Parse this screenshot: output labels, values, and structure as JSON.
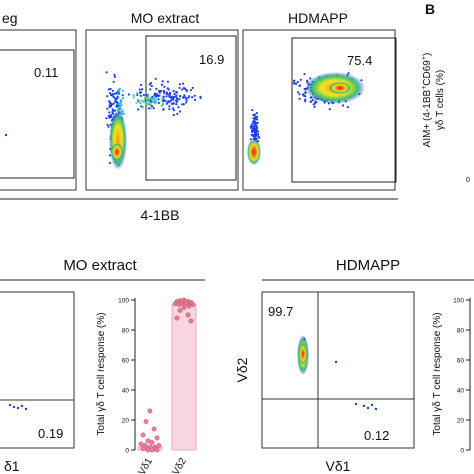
{
  "panel_b_letter": "B",
  "top": {
    "panels": [
      {
        "title": "eg",
        "value": "0.11"
      },
      {
        "title": "MO extract",
        "value": "16.9"
      },
      {
        "title": "HDMAPP",
        "value": "75.4"
      }
    ],
    "xlabel": "4-1BB",
    "right_ylabel_line1": "AIM+ (4-1BB",
    "right_ylabel_sup1": "+",
    "right_ylabel_mid": "CD69",
    "right_ylabel_sup2": "+",
    "right_ylabel_end": ")",
    "right_ylabel_line2": "γδ T cells (%)",
    "right_tick": "0"
  },
  "bottom": {
    "left_group": {
      "title": "MO extract",
      "flow_value": "0.19",
      "flow_xlabel": "δ1"
    },
    "right_group": {
      "title": "HDMAPP",
      "flow_value_top": "99.7",
      "flow_value_bottom": "0.12",
      "flow_xlabel": "Vδ1",
      "flow_ylabel": "Vδ2"
    },
    "dot_plot_ylabel": "Total γδ T cell response (%)"
  },
  "chart_data": [
    {
      "type": "scatter",
      "title": "MO extract",
      "ylabel": "Total γδ T cell response (%)",
      "categories": [
        "Vδ1",
        "Vδ2"
      ],
      "yticks": [
        "0",
        "20",
        "40",
        "60",
        "80",
        "100"
      ],
      "ylim": [
        0,
        100
      ],
      "bars": [
        2,
        97
      ],
      "points": [
        [
          1,
          26
        ],
        [
          1,
          19
        ],
        [
          1,
          14
        ],
        [
          1,
          10
        ],
        [
          1,
          8
        ],
        [
          1,
          6
        ],
        [
          1,
          5
        ],
        [
          1,
          4
        ],
        [
          1,
          3
        ],
        [
          1,
          3
        ],
        [
          1,
          2
        ],
        [
          1,
          2
        ],
        [
          1,
          1
        ],
        [
          1,
          1
        ],
        [
          1,
          1
        ],
        [
          1,
          0
        ],
        [
          1,
          0
        ],
        [
          1,
          0
        ],
        [
          2,
          100
        ],
        [
          2,
          99.5
        ],
        [
          2,
          99
        ],
        [
          2,
          99
        ],
        [
          2,
          98.5
        ],
        [
          2,
          98
        ],
        [
          2,
          98
        ],
        [
          2,
          97.5
        ],
        [
          2,
          97
        ],
        [
          2,
          97
        ],
        [
          2,
          96
        ],
        [
          2,
          95
        ],
        [
          2,
          93
        ],
        [
          2,
          90
        ],
        [
          2,
          88
        ],
        [
          2,
          86
        ]
      ],
      "colors": {
        "vd1_point": "#f07ca0",
        "vd2_point": "#e27a90",
        "vd2_bar": "#f9d6df",
        "vd2_bar_edge": "#e79ab0"
      }
    },
    {
      "type": "scatter",
      "title": "HDMAPP",
      "ylabel": "Total γδ T cell response (%)",
      "yticks": [
        "100",
        "80",
        "60",
        "40",
        "20",
        "0"
      ]
    }
  ]
}
